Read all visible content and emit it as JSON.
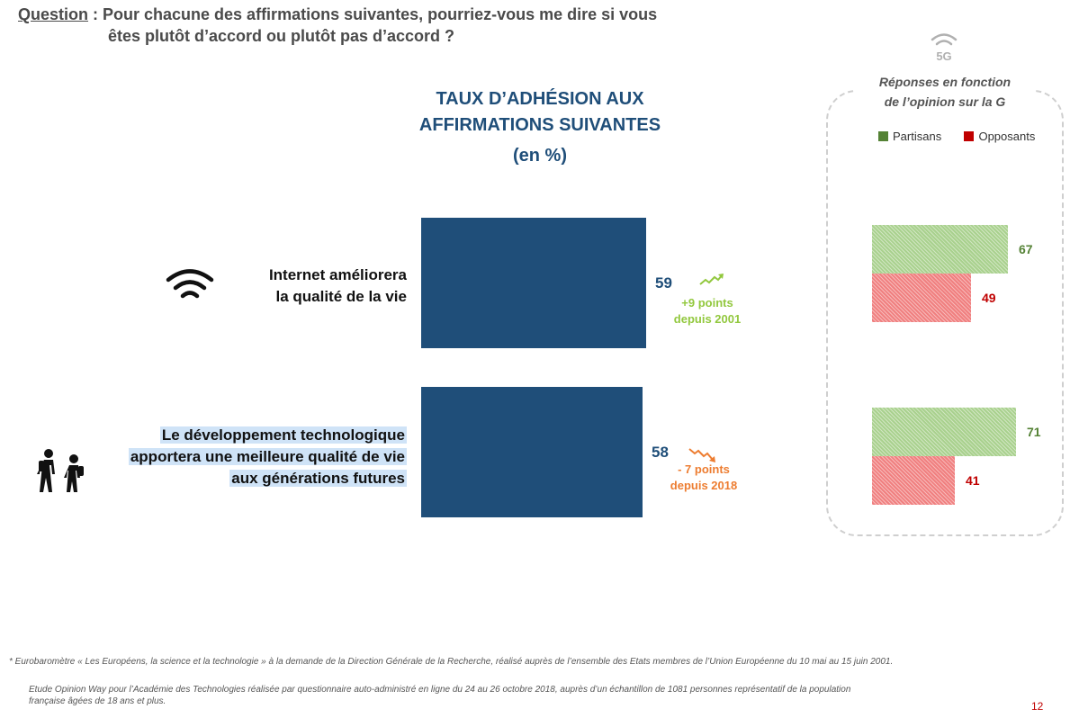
{
  "question": {
    "label": "Question",
    "line1": " : Pour chacune des affirmations suivantes, pourriez-vous me dire si vous",
    "line2": "êtes plutôt d’accord ou plutôt pas d’accord ?"
  },
  "main_chart": {
    "title_line1": "TAUX D’ADHÉSION AUX",
    "title_line2": "AFFIRMATIONS SUIVANTES",
    "unit": "(en %)"
  },
  "panel": {
    "icon_text": "5G",
    "title_line1": "Réponses en fonction",
    "title_line2": "de l’opinion sur la  G",
    "legend": [
      {
        "label": "Partisans",
        "color": "#548235"
      },
      {
        "label": "Opposants",
        "color": "#c00000"
      }
    ]
  },
  "chart_data": [
    {
      "type": "bar",
      "orientation": "horizontal",
      "title": "TAUX D’ADHÉSION AUX AFFIRMATIONS SUIVANTES",
      "subtitle": "(en %)",
      "categories": [
        {
          "line1": "Internet améliorera",
          "line2": "la qualité de la vie",
          "line3": ""
        },
        {
          "line1": "Le développement technologique",
          "line2": "apportera une meilleure qualité de vie",
          "line3": "aux générations futures"
        }
      ],
      "values": [
        59,
        58
      ],
      "value_labels": [
        "59",
        "58"
      ],
      "annotations": [
        {
          "line1": "+9 points",
          "line2": "depuis 2001",
          "color": "#92c83e",
          "direction": "up"
        },
        {
          "line1": "- 7 points",
          "line2": "depuis 2018",
          "color": "#ed7d31",
          "direction": "down"
        }
      ],
      "bar_color": "#1f4e79",
      "xlim": [
        0,
        100
      ]
    },
    {
      "type": "bar",
      "orientation": "horizontal",
      "title": "Réponses en fonction de l’opinion sur la  G",
      "categories": [
        "Internet améliorera la qualité de la vie",
        "Le développement technologique apportera une meilleure qualité de vie aux générations futures"
      ],
      "series": [
        {
          "name": "Partisans",
          "values": [
            67,
            71
          ],
          "labels": [
            "67",
            "71"
          ],
          "color": "#548235"
        },
        {
          "name": "Opposants",
          "values": [
            49,
            41
          ],
          "labels": [
            "49",
            "41"
          ],
          "color": "#c00000"
        }
      ],
      "legend": "top",
      "xlim": [
        0,
        100
      ]
    }
  ],
  "footnote1": "*  Eurobaromètre « Les Européens, la science et la technologie » à la demande de la Direction Générale de la Recherche, réalisé auprès de l’ensemble des Etats membres de l’Union Européenne du 10 mai au 15 juin 2001.",
  "footnote2": "Etude Opinion Way pour l’Académie des Technologies réalisée par questionnaire auto-administré en ligne du 24 au 26 octobre 2018, auprès d’un échantillon de 1081 personnes représentatif de la population",
  "footnote3": "française âgées de 18 ans et plus.",
  "page_number": "12"
}
